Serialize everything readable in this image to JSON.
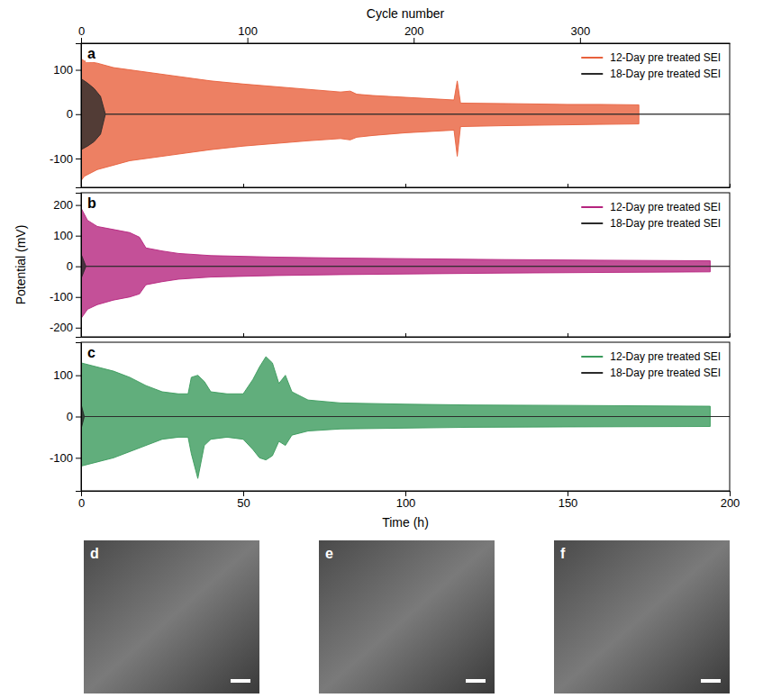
{
  "chart_data": [
    {
      "type": "area",
      "panel": "a",
      "x2_label": "Cycle number",
      "x2lim": [
        0,
        390
      ],
      "x2ticks": [
        0,
        100,
        200,
        300
      ],
      "xlim": [
        0,
        200
      ],
      "xticks": [
        0,
        50,
        100,
        150,
        200
      ],
      "ylim": [
        -165,
        160
      ],
      "yticks": [
        -100,
        0,
        100
      ],
      "tick_labels": "y",
      "legend": "upper right",
      "series": [
        {
          "name": "12-Day pre treated SEI",
          "color": "#e8603c",
          "x": [
            0,
            1,
            5,
            10,
            15,
            20,
            30,
            40,
            50,
            60,
            70,
            80,
            83,
            85,
            90,
            100,
            110,
            115,
            116,
            117,
            130,
            140,
            150,
            160,
            172
          ],
          "high": [
            125,
            120,
            115,
            105,
            100,
            95,
            85,
            75,
            68,
            62,
            56,
            50,
            52,
            45,
            42,
            38,
            34,
            32,
            75,
            25,
            24,
            23,
            22,
            22,
            21
          ],
          "low": [
            -150,
            -140,
            -125,
            -115,
            -105,
            -100,
            -90,
            -80,
            -72,
            -66,
            -60,
            -55,
            -58,
            -52,
            -48,
            -42,
            -38,
            -36,
            -95,
            -28,
            -26,
            -25,
            -24,
            -23,
            -22
          ]
        },
        {
          "name": "18-Day pre treated SEI",
          "color": "#2b2b2b",
          "x": [
            0,
            2,
            4,
            6,
            7.5,
            200
          ],
          "high": [
            80,
            70,
            58,
            40,
            0,
            0
          ],
          "low": [
            -80,
            -72,
            -62,
            -45,
            0,
            0
          ]
        }
      ]
    },
    {
      "type": "area",
      "panel": "b",
      "y_label": "Potential (mV)",
      "xlim": [
        0,
        200
      ],
      "xticks": [
        0,
        50,
        100,
        150,
        200
      ],
      "ylim": [
        -230,
        240
      ],
      "yticks": [
        -200,
        -100,
        0,
        100,
        200
      ],
      "tick_labels": "y",
      "legend": "upper right",
      "series": [
        {
          "name": "12-Day pre treated SEI",
          "color": "#b5247e",
          "x": [
            0,
            2,
            5,
            10,
            15,
            18,
            20,
            25,
            30,
            40,
            60,
            80,
            100,
            130,
            160,
            194
          ],
          "high": [
            190,
            150,
            130,
            120,
            110,
            95,
            60,
            50,
            42,
            35,
            30,
            27,
            25,
            22,
            20,
            18
          ],
          "low": [
            -170,
            -140,
            -125,
            -110,
            -100,
            -90,
            -60,
            -50,
            -42,
            -35,
            -30,
            -27,
            -25,
            -22,
            -20,
            -18
          ]
        },
        {
          "name": "18-Day pre treated SEI",
          "color": "#2b2b2b",
          "x": [
            0,
            1.5,
            200
          ],
          "high": [
            40,
            0,
            0
          ],
          "low": [
            -40,
            0,
            0
          ]
        }
      ]
    },
    {
      "type": "area",
      "panel": "c",
      "x_label": "Time (h)",
      "xlim": [
        0,
        200
      ],
      "xticks": [
        0,
        50,
        100,
        150,
        200
      ],
      "ylim": [
        -180,
        180
      ],
      "yticks": [
        -100,
        0,
        100
      ],
      "legend": "upper right",
      "series": [
        {
          "name": "12-Day pre treated SEI",
          "color": "#3a9a5b",
          "x": [
            0,
            5,
            10,
            15,
            20,
            25,
            30,
            33,
            34,
            36,
            38,
            40,
            45,
            50,
            53,
            55,
            57,
            59,
            61,
            63,
            65,
            70,
            80,
            100,
            120,
            150,
            194
          ],
          "high": [
            130,
            120,
            110,
            95,
            75,
            60,
            55,
            55,
            95,
            100,
            85,
            60,
            55,
            55,
            90,
            120,
            145,
            130,
            80,
            100,
            60,
            40,
            33,
            30,
            28,
            27,
            25
          ],
          "low": [
            -120,
            -110,
            -100,
            -85,
            -70,
            -55,
            -50,
            -50,
            -90,
            -150,
            -70,
            -55,
            -50,
            -55,
            -80,
            -100,
            -105,
            -95,
            -60,
            -70,
            -45,
            -35,
            -30,
            -28,
            -26,
            -25,
            -24
          ]
        },
        {
          "name": "18-Day pre treated SEI",
          "color": "#2b2b2b",
          "x": [
            0,
            1,
            200
          ],
          "high": [
            30,
            0,
            0
          ],
          "low": [
            -30,
            0,
            0
          ]
        }
      ]
    }
  ],
  "micrographs": [
    {
      "label": "d"
    },
    {
      "label": "e"
    },
    {
      "label": "f"
    }
  ]
}
